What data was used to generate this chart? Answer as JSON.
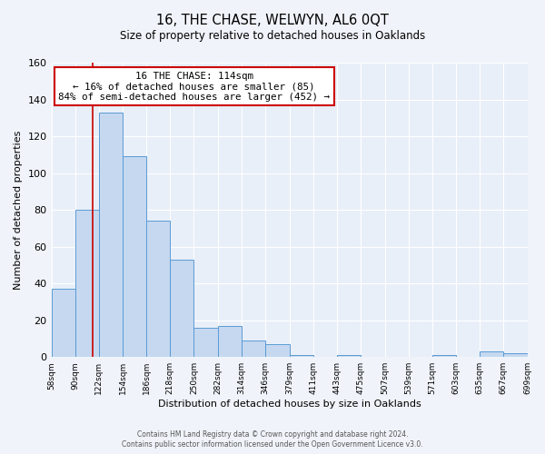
{
  "title": "16, THE CHASE, WELWYN, AL6 0QT",
  "subtitle": "Size of property relative to detached houses in Oaklands",
  "xlabel": "Distribution of detached houses by size in Oaklands",
  "ylabel": "Number of detached properties",
  "bar_color": "#c5d8f0",
  "bar_edge_color": "#5b9bd5",
  "bg_color": "#e8eff8",
  "fig_bg_color": "#f0f4fa",
  "annotation_text": "16 THE CHASE: 114sqm\n← 16% of detached houses are smaller (85)\n84% of semi-detached houses are larger (452) →",
  "vline_x": 114,
  "vline_color": "#cc0000",
  "annotation_box_color": "#ffffff",
  "annotation_box_edge": "#cc0000",
  "bins": [
    58,
    90,
    122,
    154,
    186,
    218,
    250,
    282,
    314,
    346,
    379,
    411,
    443,
    475,
    507,
    539,
    571,
    603,
    635,
    667,
    699
  ],
  "values": [
    37,
    80,
    133,
    109,
    74,
    53,
    16,
    17,
    9,
    7,
    1,
    0,
    1,
    0,
    0,
    0,
    1,
    0,
    3,
    2
  ],
  "ylim": [
    0,
    160
  ],
  "yticks": [
    0,
    20,
    40,
    60,
    80,
    100,
    120,
    140,
    160
  ],
  "tick_labels": [
    "58sqm",
    "90sqm",
    "122sqm",
    "154sqm",
    "186sqm",
    "218sqm",
    "250sqm",
    "282sqm",
    "314sqm",
    "346sqm",
    "379sqm",
    "411sqm",
    "443sqm",
    "475sqm",
    "507sqm",
    "539sqm",
    "571sqm",
    "603sqm",
    "635sqm",
    "667sqm",
    "699sqm"
  ],
  "footer_line1": "Contains HM Land Registry data © Crown copyright and database right 2024.",
  "footer_line2": "Contains public sector information licensed under the Open Government Licence v3.0."
}
